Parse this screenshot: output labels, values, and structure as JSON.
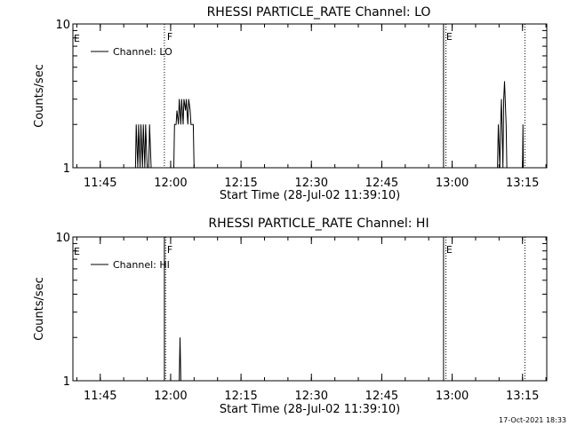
{
  "footer": {
    "timestamp": "17-Oct-2021 18:33"
  },
  "chart_data": [
    {
      "type": "line",
      "title": "RHESSI PARTICLE_RATE Channel: LO",
      "xlabel": "Start Time (28-Jul-02 11:39:10)",
      "ylabel": "Counts/sec",
      "yscale": "log",
      "ylim": [
        1,
        10
      ],
      "xlim": [
        "11:39:10",
        "13:20:10"
      ],
      "x_ticks": [
        "11:45",
        "12:00",
        "12:15",
        "12:30",
        "12:45",
        "13:00",
        "13:15"
      ],
      "y_ticks": [
        "1",
        "10"
      ],
      "legend": {
        "placement": "top-left",
        "entries": [
          "Channel: LO"
        ]
      },
      "markers": [
        {
          "time": "11:58:40",
          "label": "F",
          "style": "dotted"
        },
        {
          "time": "12:58:10",
          "label": "E",
          "style": "solid"
        },
        {
          "time": "12:58:40",
          "label": "",
          "style": "dotted"
        },
        {
          "time": "13:15:30",
          "label": "",
          "style": "dotted"
        }
      ],
      "edge_labels": [
        {
          "time": "11:39:10",
          "label": "E"
        }
      ],
      "series": [
        {
          "name": "Channel: LO",
          "points": [
            [
              "11:52:30",
              1
            ],
            [
              "11:52:40",
              2
            ],
            [
              "11:53:00",
              1
            ],
            [
              "11:53:10",
              2
            ],
            [
              "11:53:30",
              1
            ],
            [
              "11:53:40",
              2
            ],
            [
              "11:54:00",
              1
            ],
            [
              "11:54:10",
              2
            ],
            [
              "11:54:30",
              1
            ],
            [
              "11:54:40",
              2
            ],
            [
              "11:55:00",
              1
            ],
            [
              "11:55:20",
              1
            ],
            [
              "11:55:30",
              2
            ],
            [
              "11:55:50",
              1
            ],
            [
              "12:00:40",
              1
            ],
            [
              "12:00:50",
              2
            ],
            [
              "12:01:10",
              2
            ],
            [
              "12:01:20",
              2.5
            ],
            [
              "12:01:40",
              2
            ],
            [
              "12:01:50",
              3
            ],
            [
              "12:02:10",
              2
            ],
            [
              "12:02:20",
              3
            ],
            [
              "12:02:40",
              2
            ],
            [
              "12:02:50",
              3
            ],
            [
              "12:03:10",
              2.5
            ],
            [
              "12:03:20",
              3
            ],
            [
              "12:03:40",
              2
            ],
            [
              "12:03:50",
              3
            ],
            [
              "12:04:10",
              2.5
            ],
            [
              "12:04:20",
              2
            ],
            [
              "12:04:50",
              2
            ],
            [
              "12:05:00",
              1
            ],
            [
              "13:09:40",
              1
            ],
            [
              "13:09:50",
              2
            ],
            [
              "13:10:10",
              1
            ],
            [
              "13:10:20",
              2
            ],
            [
              "13:10:30",
              3
            ],
            [
              "13:10:50",
              1
            ],
            [
              "13:11:00",
              3
            ],
            [
              "13:11:10",
              4
            ],
            [
              "13:11:30",
              2
            ],
            [
              "13:11:40",
              1
            ],
            [
              "13:15:00",
              1
            ],
            [
              "13:15:05",
              2
            ],
            [
              "13:15:10",
              1
            ]
          ]
        }
      ]
    },
    {
      "type": "line",
      "title": "RHESSI PARTICLE_RATE Channel: HI",
      "xlabel": "Start Time (28-Jul-02 11:39:10)",
      "ylabel": "Counts/sec",
      "yscale": "log",
      "ylim": [
        1,
        10
      ],
      "xlim": [
        "11:39:10",
        "13:20:10"
      ],
      "x_ticks": [
        "11:45",
        "12:00",
        "12:15",
        "12:30",
        "12:45",
        "13:00",
        "13:15"
      ],
      "y_ticks": [
        "1",
        "10"
      ],
      "legend": {
        "placement": "top-left",
        "entries": [
          "Channel: HI"
        ]
      },
      "markers": [
        {
          "time": "11:58:40",
          "label": "F",
          "style": "solid"
        },
        {
          "time": "11:58:55",
          "label": "",
          "style": "dotted"
        },
        {
          "time": "12:58:10",
          "label": "E",
          "style": "solid"
        },
        {
          "time": "12:58:40",
          "label": "",
          "style": "dotted"
        },
        {
          "time": "13:15:30",
          "label": "",
          "style": "dotted"
        }
      ],
      "edge_labels": [
        {
          "time": "11:39:10",
          "label": "E"
        }
      ],
      "series": [
        {
          "name": "Channel: HI",
          "points": [
            [
              "12:01:50",
              1
            ],
            [
              "12:02:00",
              2
            ],
            [
              "12:02:10",
              1
            ]
          ]
        }
      ]
    }
  ]
}
